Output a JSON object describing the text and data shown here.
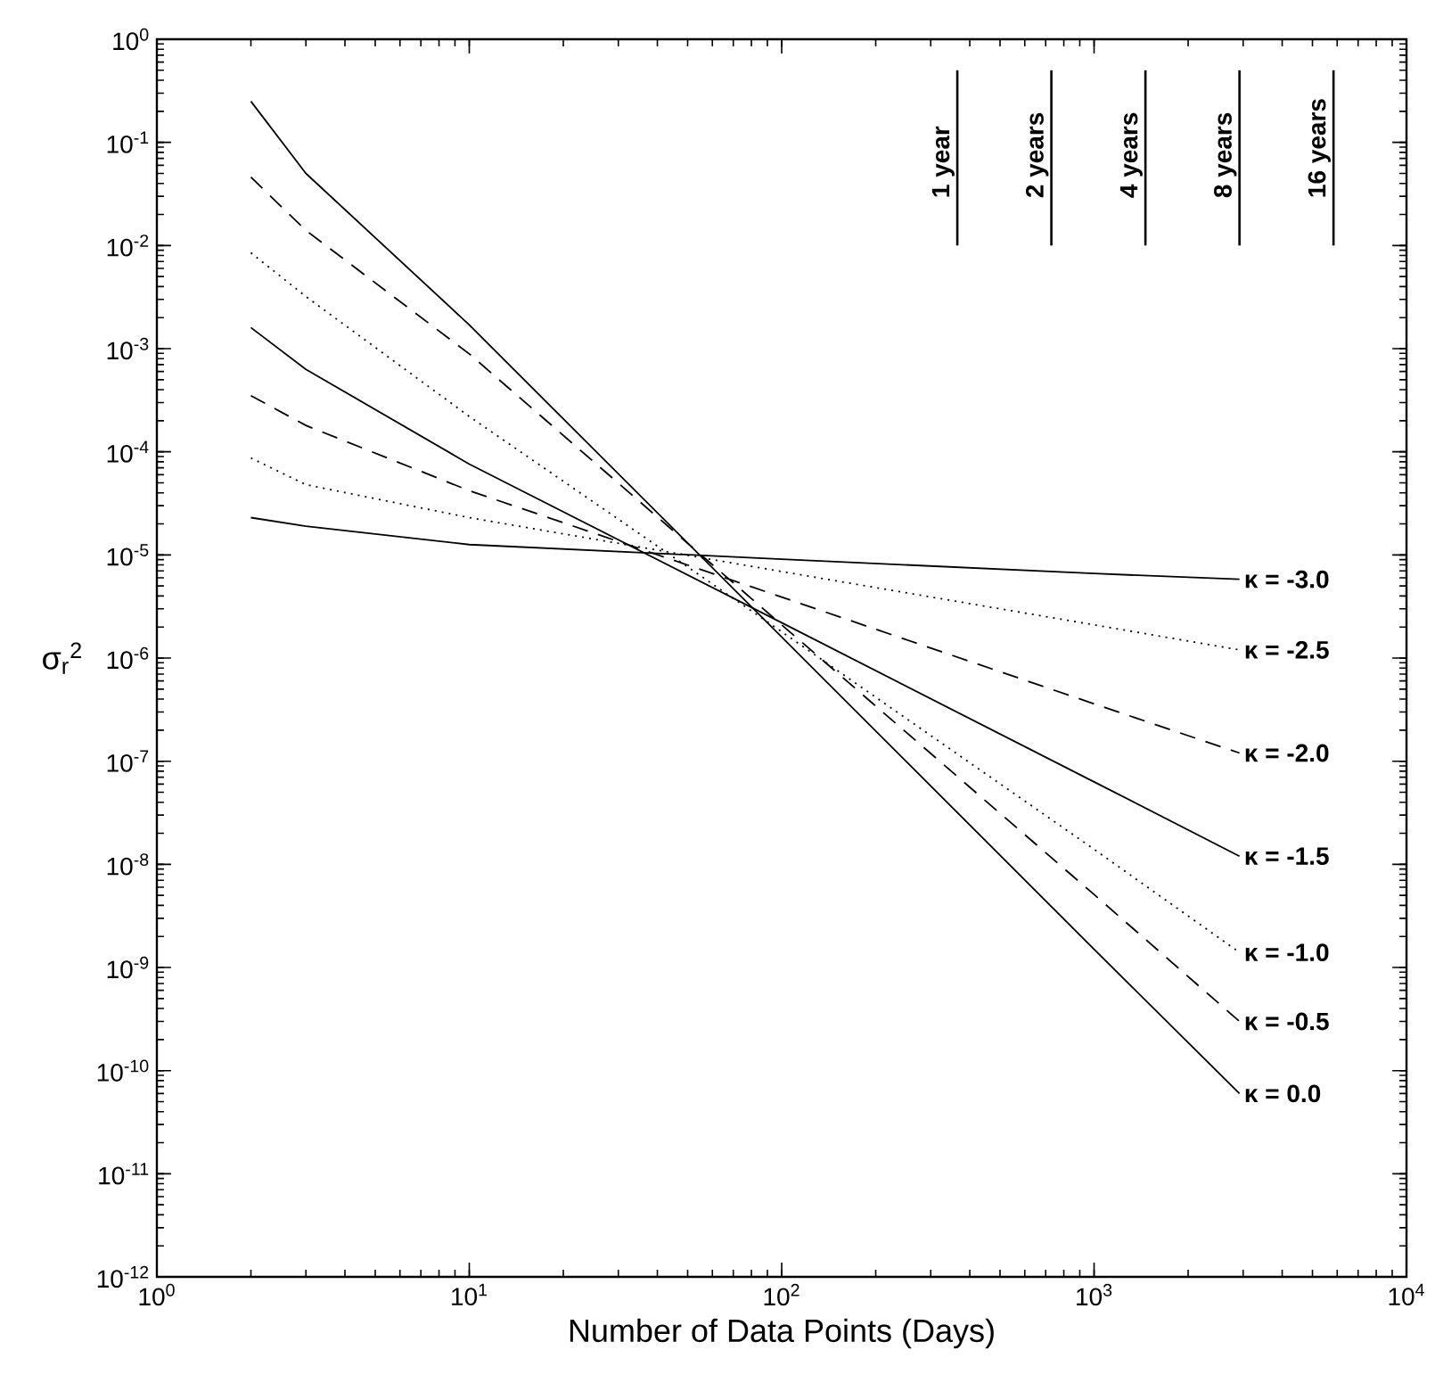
{
  "chart_data": {
    "type": "line",
    "xlabel": "Number of Data Points (Days)",
    "ylabel": "σ$_{r}$$^{2}$",
    "log": "xy",
    "grid": false,
    "legend": false,
    "marker": "none",
    "xlim": [
      1,
      10000
    ],
    "ylim": [
      1e-12,
      1
    ],
    "xticks": [
      {
        "value": 1,
        "label": "10$^{0}$"
      },
      {
        "value": 10,
        "label": "10$^{1}$"
      },
      {
        "value": 100,
        "label": "10$^{2}$"
      },
      {
        "value": 1000,
        "label": "10$^{3}$"
      },
      {
        "value": 10000,
        "label": "10$^{4}$"
      }
    ],
    "yticks": [
      {
        "value": 1e-12,
        "label": "10$^{-12}$"
      },
      {
        "value": 1e-11,
        "label": "10$^{-11}$"
      },
      {
        "value": 1e-10,
        "label": "10$^{-10}$"
      },
      {
        "value": 1e-09,
        "label": "10$^{-9}$"
      },
      {
        "value": 1e-08,
        "label": "10$^{-8}$"
      },
      {
        "value": 1e-07,
        "label": "10$^{-7}$"
      },
      {
        "value": 1e-06,
        "label": "10$^{-6}$"
      },
      {
        "value": 1e-05,
        "label": "10$^{-5}$"
      },
      {
        "value": 0.0001,
        "label": "10$^{-4}$"
      },
      {
        "value": 0.001,
        "label": "10$^{-3}$"
      },
      {
        "value": 0.01,
        "label": "10$^{-2}$"
      },
      {
        "value": 0.1,
        "label": "10$^{-1}$"
      },
      {
        "value": 1,
        "label": "10$^{0}$"
      }
    ],
    "x": [
      2,
      3,
      10,
      100,
      1000,
      2920
    ],
    "series": [
      {
        "name": "κ = -3.0",
        "color": "#000000",
        "line_style": "solid",
        "values": [
          2.3e-05,
          1.9e-05,
          1.26e-05,
          9.1e-06,
          6.6e-06,
          5.8e-06
        ]
      },
      {
        "name": "κ = -2.5",
        "color": "#000000",
        "line_style": "dotted",
        "values": [
          8.7e-05,
          4.8e-05,
          2.3e-05,
          6.9e-06,
          2.1e-06,
          1.2e-06
        ]
      },
      {
        "name": "κ = -2.0",
        "color": "#000000",
        "line_style": "dashed",
        "values": [
          0.00035,
          0.00018,
          4.2e-05,
          3.9e-06,
          3.6e-07,
          1.2e-07
        ]
      },
      {
        "name": "κ = -1.5",
        "color": "#000000",
        "line_style": "solid",
        "values": [
          0.0016,
          0.00063,
          7.6e-05,
          2.2e-06,
          6.3e-08,
          1.2e-08
        ]
      },
      {
        "name": "κ = -1.0",
        "color": "#000000",
        "line_style": "dotted",
        "values": [
          0.0085,
          0.0032,
          0.00022,
          1.8e-06,
          1.4e-08,
          1.4e-09
        ]
      },
      {
        "name": "κ = -0.5",
        "color": "#000000",
        "line_style": "dashed",
        "values": [
          0.046,
          0.014,
          0.00089,
          2.1e-06,
          5.1e-09,
          3e-10
        ]
      },
      {
        "name": "κ = 0.0",
        "color": "#000000",
        "line_style": "solid",
        "values": [
          0.25,
          0.05,
          0.0017,
          1.6e-06,
          1.5e-09,
          6e-11
        ]
      }
    ],
    "ref_lines": [
      {
        "axis": "x",
        "value": 365,
        "label": "1 year",
        "color": "#000000"
      },
      {
        "axis": "x",
        "value": 730,
        "label": "2 years",
        "color": "#000000"
      },
      {
        "axis": "x",
        "value": 1460,
        "label": "4 years",
        "color": "#000000"
      },
      {
        "axis": "x",
        "value": 2920,
        "label": "8 years",
        "color": "#000000"
      },
      {
        "axis": "x",
        "value": 5840,
        "label": "16 years",
        "color": "#000000"
      }
    ]
  }
}
